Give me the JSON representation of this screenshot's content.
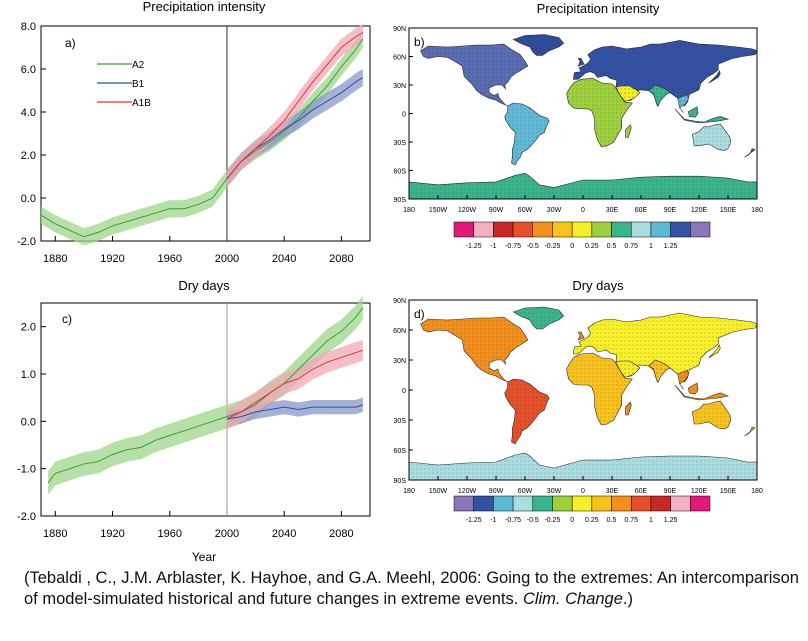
{
  "chart_data": [
    {
      "type": "line",
      "panel_label": "a)",
      "title": "Precipitation intensity",
      "xlabel": "",
      "ylabel": "",
      "xlim": [
        1870,
        2100
      ],
      "ylim": [
        -2.0,
        8.0
      ],
      "x_ticks": [
        1880,
        1920,
        1960,
        2000,
        2040,
        2080
      ],
      "y_ticks": [
        -2.0,
        0.0,
        2.0,
        4.0,
        6.0,
        8.0
      ],
      "y_tick_labels": [
        "-2.0",
        "0.0",
        "2.0",
        "4.0",
        "6.0",
        "8.0"
      ],
      "vertical_marker_x": 2000,
      "legend_position": "top-left",
      "colors": {
        "A2": "#5cb85c",
        "B1": "#3a5ea8",
        "A1B": "#d94a4a"
      },
      "series": [
        {
          "name": "A2",
          "x": [
            1870,
            1880,
            1890,
            1900,
            1910,
            1920,
            1930,
            1940,
            1950,
            1960,
            1970,
            1980,
            1990,
            2000,
            2010,
            2020,
            2030,
            2040,
            2050,
            2060,
            2070,
            2080,
            2090,
            2095
          ],
          "values": [
            -0.8,
            -1.2,
            -1.5,
            -1.8,
            -1.6,
            -1.3,
            -1.1,
            -0.9,
            -0.7,
            -0.5,
            -0.5,
            -0.3,
            0.0,
            0.9,
            1.7,
            2.2,
            2.6,
            3.1,
            3.7,
            4.5,
            5.2,
            6.1,
            6.9,
            7.4
          ],
          "band": 0.4
        },
        {
          "name": "B1",
          "x": [
            2000,
            2010,
            2020,
            2030,
            2040,
            2050,
            2060,
            2070,
            2080,
            2090,
            2095
          ],
          "values": [
            0.9,
            1.7,
            2.3,
            2.7,
            3.2,
            3.6,
            4.1,
            4.5,
            4.9,
            5.4,
            5.6
          ],
          "band": 0.4
        },
        {
          "name": "A1B",
          "x": [
            2000,
            2010,
            2020,
            2030,
            2040,
            2050,
            2060,
            2070,
            2080,
            2090,
            2095
          ],
          "values": [
            0.9,
            1.7,
            2.3,
            2.9,
            3.6,
            4.5,
            5.4,
            6.2,
            7.0,
            7.5,
            7.7
          ],
          "band": 0.4
        }
      ]
    },
    {
      "type": "heatmap",
      "panel_label": "b)",
      "title": "Precipitation intensity",
      "x_tick_labels": [
        "180",
        "150W",
        "120W",
        "90W",
        "60W",
        "30W",
        "0",
        "30E",
        "60E",
        "90E",
        "120E",
        "150E",
        "180"
      ],
      "y_tick_labels": [
        "90N",
        "60N",
        "30N",
        "0",
        "30S",
        "60S",
        "90S"
      ],
      "colorbar_labels": [
        "-1.25",
        "-1",
        "-0.75",
        "-0.5",
        "-0.25",
        "0",
        "0.25",
        "0.5",
        "0.75",
        "1",
        "1.25"
      ],
      "colorbar_colors": [
        "#e2197a",
        "#f2b0c0",
        "#c52a27",
        "#e4502a",
        "#f38f1c",
        "#f7c21d",
        "#f7ef2a",
        "#9dcf3f",
        "#3bb48c",
        "#abdce0",
        "#5fb9d6",
        "#3451a3",
        "#8a76b8"
      ]
    },
    {
      "type": "line",
      "panel_label": "c)",
      "title": "Dry days",
      "xlabel": "Year",
      "ylabel": "",
      "xlim": [
        1870,
        2100
      ],
      "ylim": [
        -2.0,
        2.5
      ],
      "x_ticks": [
        1880,
        1920,
        1960,
        2000,
        2040,
        2080
      ],
      "y_ticks": [
        -2.0,
        -1.0,
        0.0,
        1.0,
        2.0
      ],
      "y_tick_labels": [
        "-2.0",
        "-1.0",
        "0.0",
        "1.0",
        "2.0"
      ],
      "vertical_marker_x": 2000,
      "colors": {
        "A2": "#5cb85c",
        "B1": "#3a5ea8",
        "A1B": "#d94a4a"
      },
      "series": [
        {
          "name": "A2",
          "x": [
            1875,
            1880,
            1890,
            1900,
            1910,
            1920,
            1930,
            1940,
            1950,
            1960,
            1970,
            1980,
            1990,
            2000,
            2010,
            2020,
            2030,
            2040,
            2050,
            2060,
            2070,
            2080,
            2090,
            2095
          ],
          "values": [
            -1.3,
            -1.1,
            -1.0,
            -0.9,
            -0.85,
            -0.7,
            -0.6,
            -0.55,
            -0.4,
            -0.3,
            -0.2,
            -0.1,
            0.0,
            0.1,
            0.2,
            0.35,
            0.6,
            0.8,
            1.1,
            1.4,
            1.7,
            1.9,
            2.2,
            2.4
          ],
          "band": 0.25
        },
        {
          "name": "B1",
          "x": [
            2000,
            2010,
            2020,
            2030,
            2040,
            2050,
            2060,
            2070,
            2080,
            2090,
            2095
          ],
          "values": [
            0.05,
            0.1,
            0.2,
            0.25,
            0.3,
            0.25,
            0.3,
            0.3,
            0.3,
            0.3,
            0.35
          ],
          "band": 0.15
        },
        {
          "name": "A1B",
          "x": [
            2000,
            2010,
            2020,
            2030,
            2040,
            2050,
            2060,
            2070,
            2080,
            2090,
            2095
          ],
          "values": [
            0.05,
            0.2,
            0.4,
            0.6,
            0.8,
            0.9,
            1.1,
            1.25,
            1.35,
            1.45,
            1.5
          ],
          "band": 0.22
        }
      ]
    },
    {
      "type": "heatmap",
      "panel_label": "d)",
      "title": "Dry days",
      "x_tick_labels": [
        "180",
        "150W",
        "120W",
        "90W",
        "60W",
        "30W",
        "0",
        "30E",
        "60E",
        "90E",
        "120E",
        "150E",
        "180"
      ],
      "y_tick_labels": [
        "90N",
        "60N",
        "30N",
        "0",
        "30S",
        "60S",
        "90S"
      ],
      "colorbar_labels": [
        "-1.25",
        "-1",
        "-0.75",
        "-0.5",
        "-0.25",
        "0",
        "0.25",
        "0.5",
        "0.75",
        "1",
        "1.25"
      ],
      "colorbar_colors": [
        "#8a76b8",
        "#3451a3",
        "#5fb9d6",
        "#abdce0",
        "#3bb48c",
        "#9dcf3f",
        "#f7ef2a",
        "#f7c21d",
        "#f38f1c",
        "#e4502a",
        "#c52a27",
        "#f2b0c0",
        "#e2197a"
      ]
    }
  ],
  "caption": {
    "part1": "(Tebaldi , C., J.M. Arblaster, K. Hayhoe, and G.A. Meehl, 2006:  Going to the extremes:  An intercomparison of model-simulated historical and future changes in extreme events.  ",
    "journal": "Clim. Change",
    "part2": ".)"
  }
}
